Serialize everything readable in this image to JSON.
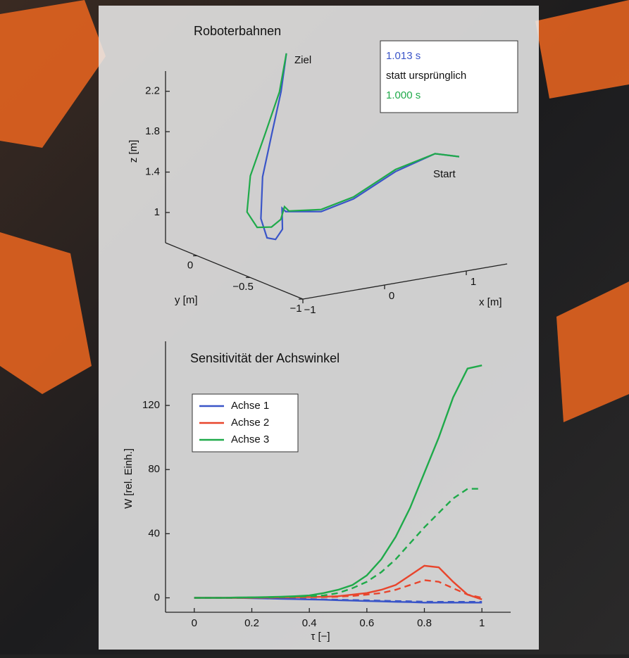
{
  "chart_data": [
    {
      "type": "line3d",
      "title": "Roboterbahnen",
      "xlabel": "x [m]",
      "ylabel": "y [m]",
      "zlabel": "z [m]",
      "xlim": [
        -1,
        1.5
      ],
      "ylim": [
        -1,
        0.3
      ],
      "zlim": [
        0.7,
        2.4
      ],
      "xticks": [
        {
          "value": -1,
          "label": "−1"
        },
        0,
        1
      ],
      "yticks": [
        0,
        {
          "value": -0.5,
          "label": "−0.5"
        },
        {
          "value": -1,
          "label": "−1"
        }
      ],
      "zticks": [
        1,
        1.4,
        1.8,
        2.2
      ],
      "legend_note": "statt ursprünglich",
      "annotations": [
        "Ziel",
        "Start"
      ],
      "series": [
        {
          "name": "1.013 s",
          "color": "#3a55c8",
          "x": [
            1.43,
            1.2,
            0.78,
            0.33,
            0.0,
            -0.37,
            -0.35,
            -0.28,
            -0.3,
            -0.34,
            -0.35,
            -0.2,
            0.04,
            0.22,
            0.35
          ],
          "y": [
            -0.6,
            -0.55,
            -0.5,
            -0.45,
            -0.4,
            -0.35,
            -0.3,
            -0.25,
            -0.2,
            -0.15,
            -0.1,
            0,
            0.1,
            0.15,
            0.2
          ],
          "z": [
            1.6,
            1.64,
            1.5,
            1.27,
            1.17,
            1.2,
            1.21,
            0.97,
            0.85,
            0.85,
            1.02,
            1.37,
            1.71,
            2.09,
            2.43
          ]
        },
        {
          "name": "1.000 s",
          "color": "#1faa4a",
          "x": [
            1.43,
            1.2,
            0.78,
            0.33,
            0.0,
            -0.33,
            -0.32,
            -0.3,
            -0.35,
            -0.46,
            -0.52,
            -0.35,
            -0.04,
            0.2,
            0.35
          ],
          "y": [
            -0.6,
            -0.55,
            -0.5,
            -0.45,
            -0.4,
            -0.35,
            -0.3,
            -0.25,
            -0.2,
            -0.15,
            -0.1,
            0,
            0.1,
            0.15,
            0.2
          ],
          "z": [
            1.6,
            1.64,
            1.52,
            1.29,
            1.19,
            1.2,
            1.22,
            1.07,
            0.98,
            0.97,
            1.11,
            1.4,
            1.73,
            2.09,
            2.43
          ]
        }
      ]
    },
    {
      "type": "line",
      "title": "Sensitivität der Achswinkel",
      "xlabel": "τ [−]",
      "ylabel": "W [rel. Einh.]",
      "xlim": [
        -0.1,
        1.1
      ],
      "ylim": [
        -9,
        160
      ],
      "xticks": [
        0,
        0.2,
        0.4,
        0.6,
        0.8,
        1
      ],
      "yticks": [
        0,
        40,
        80,
        120
      ],
      "x": [
        0,
        0.05,
        0.1,
        0.15,
        0.2,
        0.25,
        0.3,
        0.35,
        0.4,
        0.45,
        0.5,
        0.55,
        0.6,
        0.65,
        0.7,
        0.75,
        0.8,
        0.85,
        0.9,
        0.95,
        1
      ],
      "series": [
        {
          "name": "Achse 1",
          "color": "#3a55c8",
          "dashed": false,
          "values": [
            0,
            0,
            0,
            0,
            -0.2,
            -0.4,
            -0.6,
            -0.8,
            -1,
            -1.2,
            -1.5,
            -1.7,
            -2,
            -2.2,
            -2.5,
            -2.7,
            -3,
            -3,
            -3,
            -3,
            -3
          ]
        },
        {
          "name": "Achse 2",
          "color": "#e8452c",
          "dashed": false,
          "values": [
            0,
            0,
            0,
            0,
            0.1,
            0.2,
            0.3,
            0.4,
            0.5,
            0.7,
            1,
            2,
            3,
            5,
            8,
            14,
            20,
            19,
            10,
            2,
            -1
          ]
        },
        {
          "name": "Achse 3",
          "color": "#1faa4a",
          "dashed": false,
          "values": [
            0,
            0,
            0,
            0.2,
            0.3,
            0.5,
            0.7,
            1,
            1.5,
            3,
            5,
            8,
            14,
            24,
            38,
            56,
            78,
            100,
            125,
            143,
            145
          ]
        },
        {
          "name": "Achse 1",
          "color": "#3a55c8",
          "dashed": true,
          "values": [
            0,
            0,
            0,
            0,
            -0.1,
            -0.3,
            -0.5,
            -0.6,
            -0.8,
            -1,
            -1.2,
            -1.4,
            -1.6,
            -1.8,
            -2,
            -2.2,
            -2.4,
            -2.5,
            -2.5,
            -2.5,
            -2.5
          ]
        },
        {
          "name": "Achse 2",
          "color": "#e8452c",
          "dashed": true,
          "values": [
            0,
            0,
            0,
            0,
            0,
            0.1,
            0.2,
            0.3,
            0.4,
            0.5,
            0.7,
            1.2,
            2,
            3,
            5,
            8,
            11,
            10,
            6,
            2,
            0
          ]
        },
        {
          "name": "Achse 3",
          "color": "#1faa4a",
          "dashed": true,
          "values": [
            0,
            0,
            0,
            0.1,
            0.2,
            0.3,
            0.5,
            0.7,
            1,
            1.5,
            3,
            6,
            10,
            16,
            24,
            34,
            44,
            53,
            62,
            68,
            68
          ]
        }
      ]
    }
  ]
}
